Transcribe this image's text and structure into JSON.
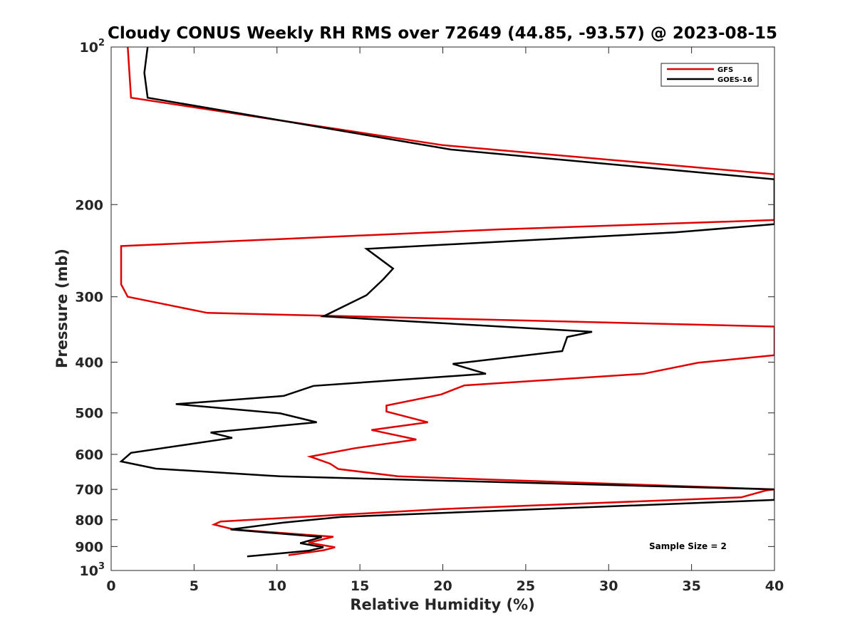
{
  "chart_data": {
    "type": "line",
    "title": "Cloudy CONUS Weekly RH RMS over 72649 (44.85, -93.57) @ 2023-08-15",
    "xlabel": "Relative Humidity (%)",
    "ylabel": "Pressure (mb)",
    "xlim": [
      0,
      40
    ],
    "ylim": [
      100,
      1000
    ],
    "y_scale": "log",
    "y_reversed": true,
    "grid": false,
    "legend_position": "top-right",
    "x_ticks": [
      "0",
      "5",
      "10",
      "15",
      "20",
      "25",
      "30",
      "35",
      "40"
    ],
    "y_ticks": [
      {
        "value": 100,
        "base": "10",
        "exp": "2"
      },
      {
        "value": 200,
        "base": "200",
        "exp": ""
      },
      {
        "value": 300,
        "base": "300",
        "exp": ""
      },
      {
        "value": 400,
        "base": "400",
        "exp": ""
      },
      {
        "value": 500,
        "base": "500",
        "exp": ""
      },
      {
        "value": 600,
        "base": "600",
        "exp": ""
      },
      {
        "value": 700,
        "base": "700",
        "exp": ""
      },
      {
        "value": 800,
        "base": "800",
        "exp": ""
      },
      {
        "value": 900,
        "base": "900",
        "exp": ""
      },
      {
        "value": 1000,
        "base": "10",
        "exp": "3"
      }
    ],
    "series": [
      {
        "name": "GFS",
        "color": "#e00000",
        "points": [
          [
            1.0,
            100
          ],
          [
            1.2,
            125
          ],
          [
            20,
            154
          ],
          [
            40,
            175
          ],
          [
            40,
            214
          ],
          [
            23.5,
            223
          ],
          [
            0.6,
            240
          ],
          [
            0.6,
            255
          ],
          [
            0.6,
            270
          ],
          [
            0.6,
            284
          ],
          [
            1.0,
            300
          ],
          [
            5.8,
            322
          ],
          [
            40,
            342
          ],
          [
            40,
            388
          ],
          [
            35.4,
            401
          ],
          [
            32.1,
            421
          ],
          [
            21.3,
            443
          ],
          [
            19.9,
            461
          ],
          [
            16.6,
            484
          ],
          [
            16.6,
            497
          ],
          [
            19.1,
            521
          ],
          [
            15.7,
            539
          ],
          [
            18.4,
            562
          ],
          [
            14.7,
            584
          ],
          [
            12.0,
            606
          ],
          [
            13.2,
            625
          ],
          [
            13.7,
            640
          ],
          [
            17.3,
            661
          ],
          [
            40,
            700
          ],
          [
            39.5,
            703
          ],
          [
            38.0,
            725
          ],
          [
            20,
            763
          ],
          [
            6.6,
            806
          ],
          [
            6.2,
            817
          ],
          [
            7.4,
            835
          ],
          [
            13.4,
            862
          ],
          [
            11.9,
            885
          ],
          [
            13.5,
            903
          ],
          [
            12.8,
            915
          ],
          [
            10.7,
            935
          ]
        ]
      },
      {
        "name": "GOES-16",
        "color": "#000000",
        "points": [
          [
            2.2,
            100
          ],
          [
            2.0,
            112
          ],
          [
            2.2,
            125
          ],
          [
            20.5,
            157
          ],
          [
            40,
            179
          ],
          [
            40,
            218
          ],
          [
            34.0,
            226
          ],
          [
            15.4,
            243
          ],
          [
            17.0,
            265
          ],
          [
            16.4,
            278
          ],
          [
            15.4,
            298
          ],
          [
            12.8,
            327
          ],
          [
            29.0,
            350
          ],
          [
            27.5,
            358
          ],
          [
            27.2,
            381
          ],
          [
            20.6,
            403
          ],
          [
            22.6,
            421
          ],
          [
            12.2,
            444
          ],
          [
            10.4,
            464
          ],
          [
            3.9,
            481
          ],
          [
            10.2,
            501
          ],
          [
            12.4,
            521
          ],
          [
            6.0,
            545
          ],
          [
            7.3,
            558
          ],
          [
            1.2,
            596
          ],
          [
            0.6,
            619
          ],
          [
            2.7,
            639
          ],
          [
            10.2,
            661
          ],
          [
            40,
            700
          ],
          [
            40,
            733
          ],
          [
            13.9,
            790
          ],
          [
            10.4,
            810
          ],
          [
            7.2,
            835
          ],
          [
            12.7,
            863
          ],
          [
            11.4,
            887
          ],
          [
            12.8,
            903
          ],
          [
            11.9,
            917
          ],
          [
            8.2,
            940
          ]
        ]
      }
    ],
    "annotation": "Sample Size = 2"
  }
}
